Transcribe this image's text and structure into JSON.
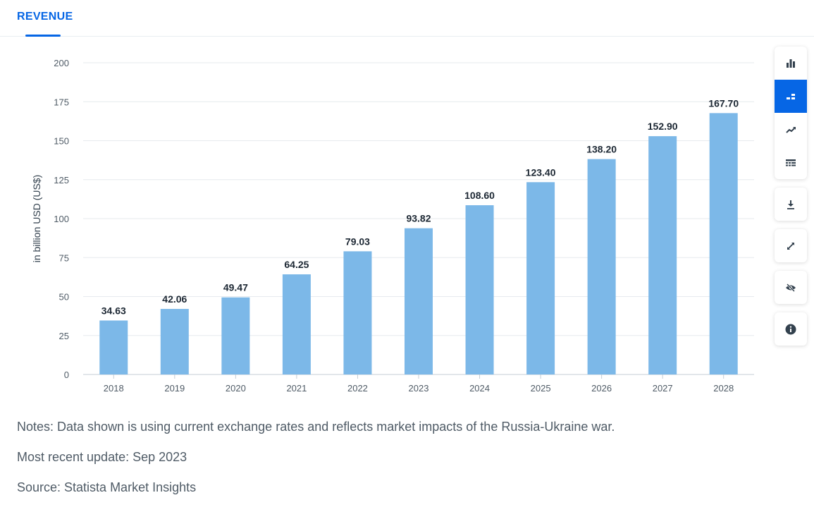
{
  "tab": {
    "label": "REVENUE"
  },
  "chart_data": {
    "type": "bar",
    "title": "",
    "xlabel": "",
    "ylabel": "in billion USD (US$)",
    "categories": [
      "2018",
      "2019",
      "2020",
      "2021",
      "2022",
      "2023",
      "2024",
      "2025",
      "2026",
      "2027",
      "2028"
    ],
    "values": [
      34.63,
      42.06,
      49.47,
      64.25,
      79.03,
      93.82,
      108.6,
      123.4,
      138.2,
      152.9,
      167.7
    ],
    "value_labels": [
      "34.63",
      "42.06",
      "49.47",
      "64.25",
      "79.03",
      "93.82",
      "108.60",
      "123.40",
      "138.20",
      "152.90",
      "167.70"
    ],
    "ylim": [
      0,
      200
    ],
    "yticks": [
      0,
      25,
      50,
      75,
      100,
      125,
      150,
      175,
      200
    ],
    "grid": true,
    "bar_color": "#7cb8e8"
  },
  "toolbar": {
    "buttons": [
      {
        "name": "bar-chart-icon",
        "active": false
      },
      {
        "name": "stacked-bar-icon",
        "active": true
      },
      {
        "name": "trend-line-icon",
        "active": false
      },
      {
        "name": "table-view-icon",
        "active": false
      },
      {
        "name": "download-icon",
        "active": false
      },
      {
        "name": "fullscreen-icon",
        "active": false
      },
      {
        "name": "hide-icon",
        "active": false
      },
      {
        "name": "info-icon",
        "active": false
      }
    ],
    "accent": "#0666e5"
  },
  "notes": {
    "note": "Notes: Data shown is using current exchange rates and reflects market impacts of the Russia-Ukraine war.",
    "update": "Most recent update: Sep 2023",
    "source": "Source: Statista Market Insights"
  }
}
